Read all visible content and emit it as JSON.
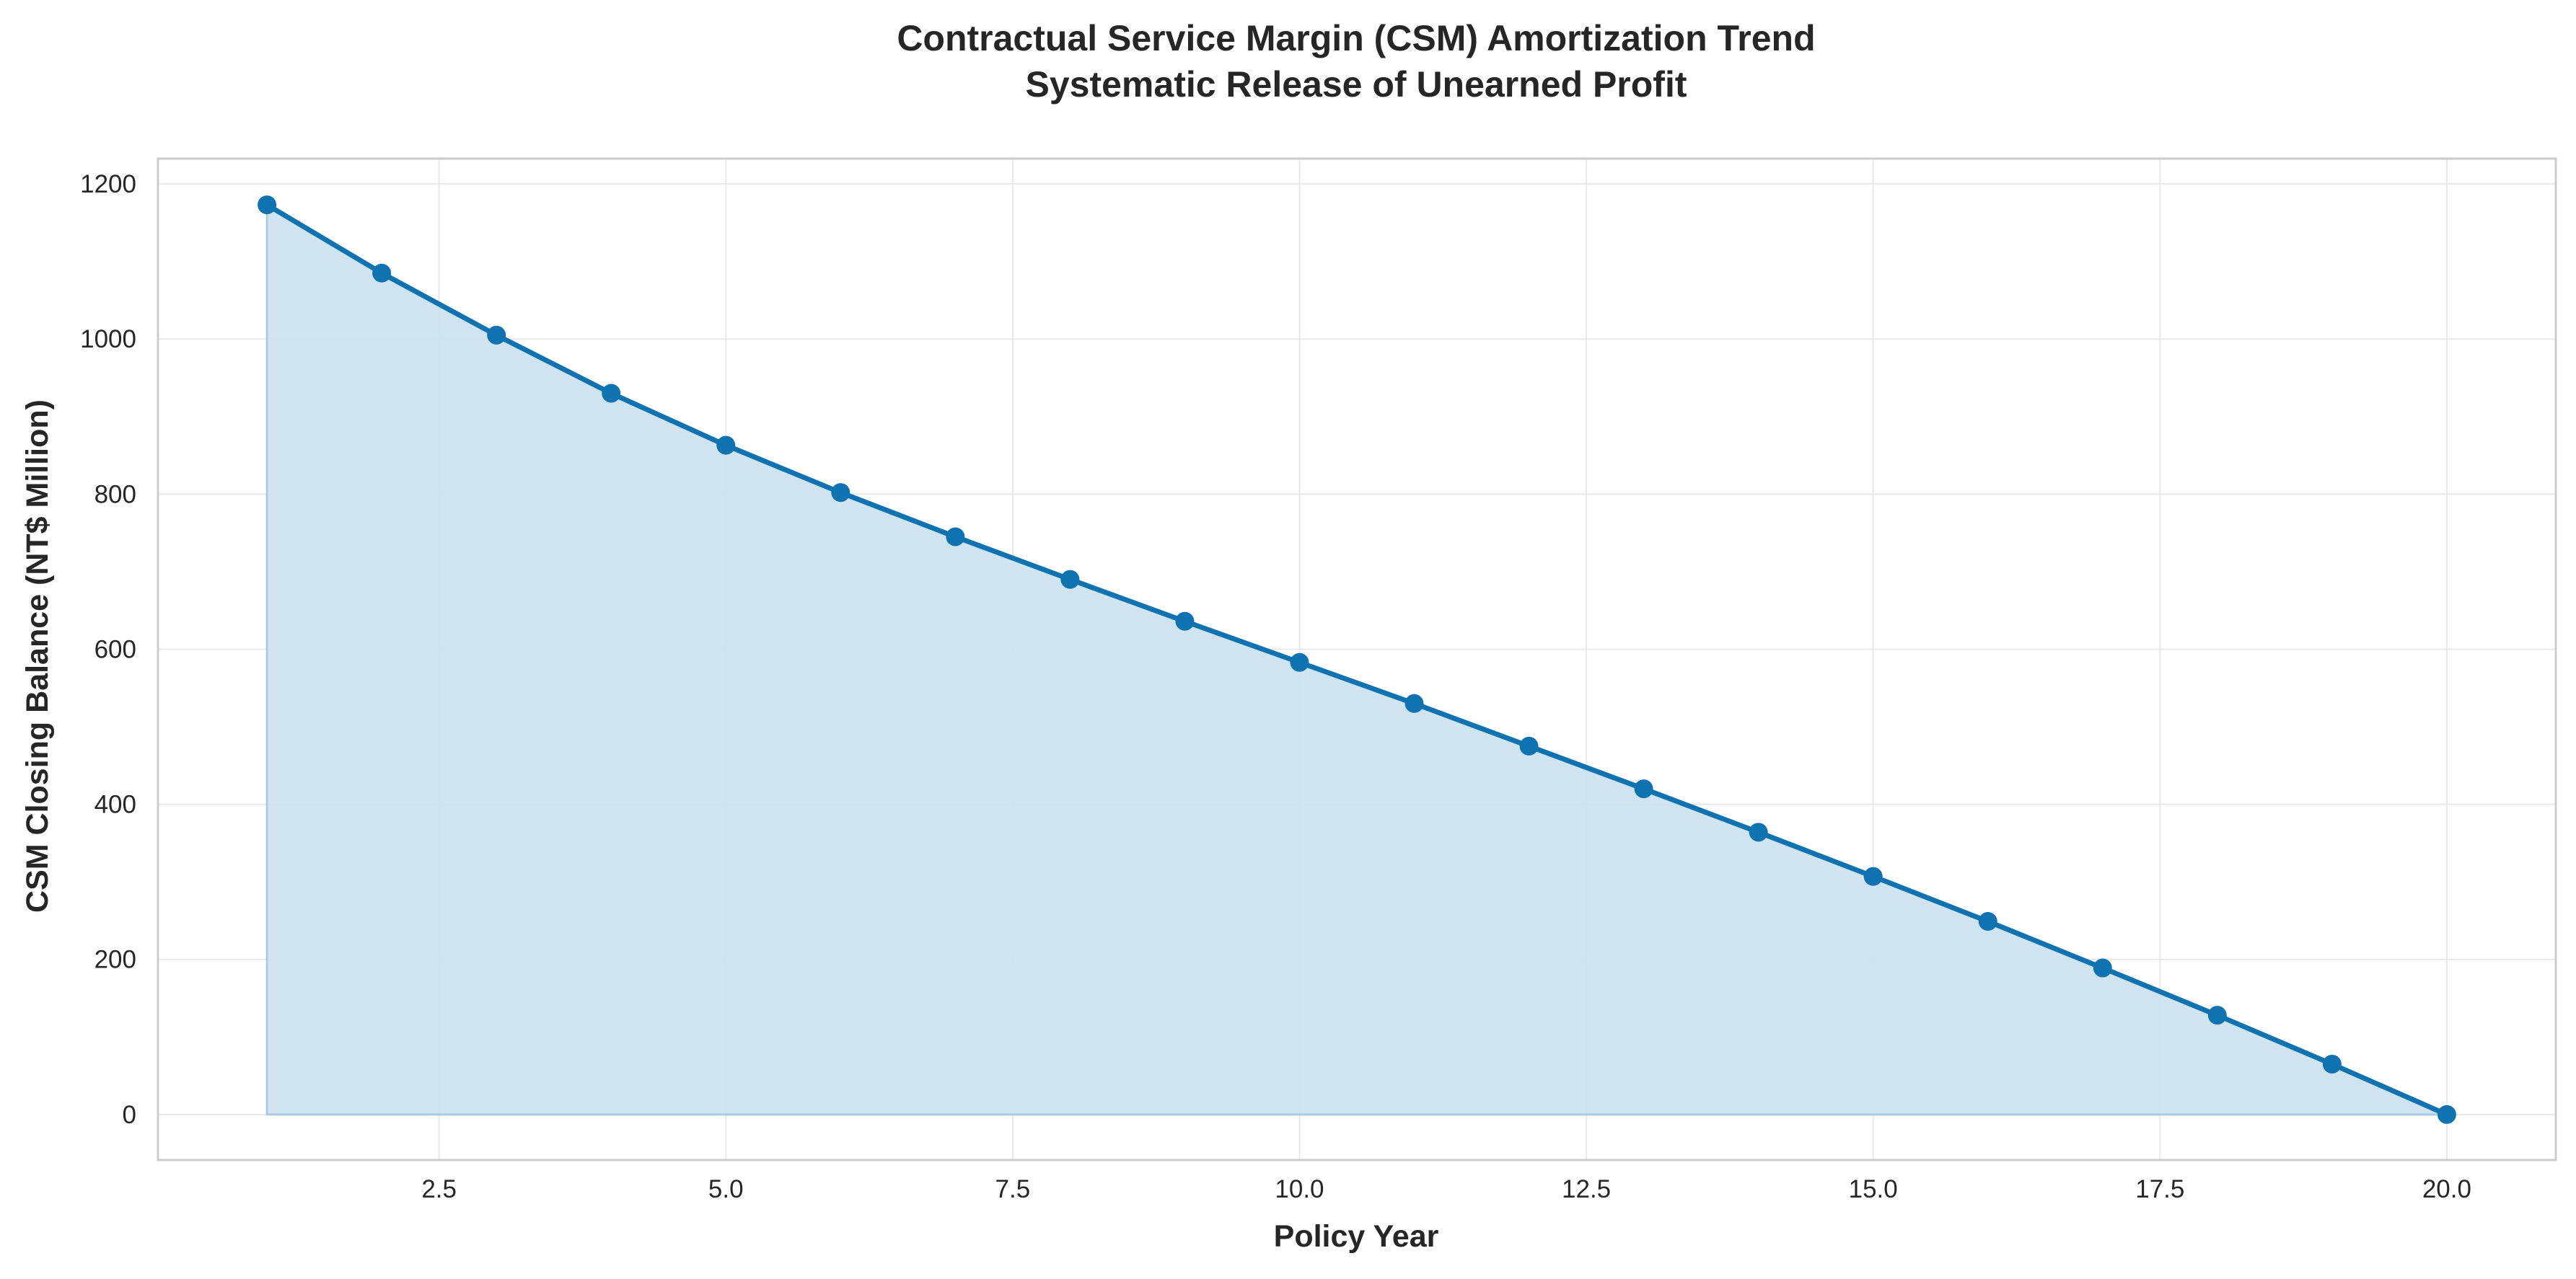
{
  "chart_data": {
    "type": "area",
    "title": "Contractual Service Margin (CSM) Amortization Trend",
    "subtitle": "Systematic Release of Unearned Profit",
    "xlabel": "Policy Year",
    "ylabel": "CSM Closing Balance (NT$ Million)",
    "xlim": [
      0.05,
      20.95
    ],
    "ylim": [
      -58.7,
      1232.6
    ],
    "x_ticks": [
      2.5,
      5.0,
      7.5,
      10.0,
      12.5,
      15.0,
      17.5,
      20.0
    ],
    "x_tick_labels": [
      "2.5",
      "5.0",
      "7.5",
      "10.0",
      "12.5",
      "15.0",
      "17.5",
      "20.0"
    ],
    "y_ticks": [
      0,
      200,
      400,
      600,
      800,
      1000,
      1200
    ],
    "y_tick_labels": [
      "0",
      "200",
      "400",
      "600",
      "800",
      "1000",
      "1200"
    ],
    "grid": true,
    "legend": "none",
    "colors": {
      "line": "#0f72b1",
      "marker": "#0f72b1",
      "fill": "#cce2f0",
      "fill_edge": "#a8cde3",
      "grid": "#e8e8e8",
      "frame": "#cccccc"
    },
    "series": [
      {
        "x": [
          1,
          2,
          3,
          4,
          5,
          6,
          7,
          8,
          9,
          10,
          11,
          12,
          13,
          14,
          15,
          16,
          17,
          18,
          19,
          20
        ],
        "values": [
          1173,
          1085,
          1005,
          930,
          863,
          802,
          745,
          690,
          636,
          583,
          530,
          475,
          420,
          364,
          307,
          249,
          189,
          128,
          65,
          0
        ]
      }
    ]
  }
}
